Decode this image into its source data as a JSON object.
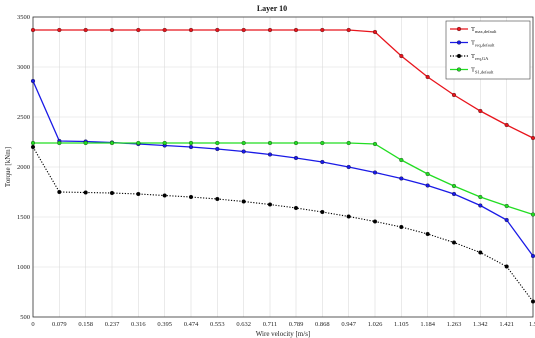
{
  "chart_data": {
    "type": "line",
    "title": "Layer 10",
    "xlabel": "Wire velocity [m/s]",
    "ylabel": "Torque [kNm]",
    "xlim": [
      0,
      1.5
    ],
    "ylim": [
      500,
      3500
    ],
    "yticks": [
      500,
      1000,
      1500,
      2000,
      2500,
      3000,
      3500
    ],
    "xtick_labels": [
      "0",
      "0.079",
      "0.158",
      "0.237",
      "0.316",
      "0.395",
      "0.474",
      "0.553",
      "0.632",
      "0.711",
      "0.789",
      "0.868",
      "0.947",
      "1.026",
      "1.105",
      "1.184",
      "1.263",
      "1.342",
      "1.421",
      "1.5"
    ],
    "x": [
      0,
      0.079,
      0.158,
      0.237,
      0.316,
      0.395,
      0.474,
      0.553,
      0.632,
      0.711,
      0.789,
      0.868,
      0.947,
      1.026,
      1.105,
      1.184,
      1.263,
      1.342,
      1.421,
      1.5
    ],
    "grid": true,
    "legend_position": "top-right",
    "series": [
      {
        "name_main": "T",
        "name_sub": "max,default",
        "color": "#e8141c",
        "marker": "circle",
        "line": "solid",
        "values": [
          3370,
          3370,
          3370,
          3370,
          3370,
          3370,
          3370,
          3370,
          3370,
          3370,
          3370,
          3370,
          3370,
          3350,
          3110,
          2900,
          2720,
          2560,
          2420,
          2290
        ]
      },
      {
        "name_main": "T",
        "name_sub": "req,default",
        "color": "#1a1ae6",
        "marker": "circle",
        "line": "solid",
        "values": [
          2860,
          2260,
          2255,
          2245,
          2230,
          2215,
          2200,
          2180,
          2155,
          2125,
          2090,
          2050,
          2000,
          1945,
          1885,
          1815,
          1730,
          1615,
          1470,
          1110
        ]
      },
      {
        "name_main": "T",
        "name_sub": "req,GA",
        "color": "#000000",
        "marker": "circle",
        "line": "dotted",
        "values": [
          2200,
          1750,
          1745,
          1740,
          1730,
          1715,
          1700,
          1680,
          1655,
          1625,
          1590,
          1550,
          1505,
          1455,
          1400,
          1330,
          1245,
          1145,
          1005,
          655
        ]
      },
      {
        "name_main": "T",
        "name_sub": "S1,default",
        "color": "#22dd22",
        "marker": "circle",
        "line": "solid",
        "values": [
          2240,
          2240,
          2240,
          2240,
          2240,
          2240,
          2240,
          2240,
          2240,
          2240,
          2240,
          2240,
          2240,
          2230,
          2070,
          1930,
          1810,
          1700,
          1610,
          1525
        ]
      }
    ]
  }
}
